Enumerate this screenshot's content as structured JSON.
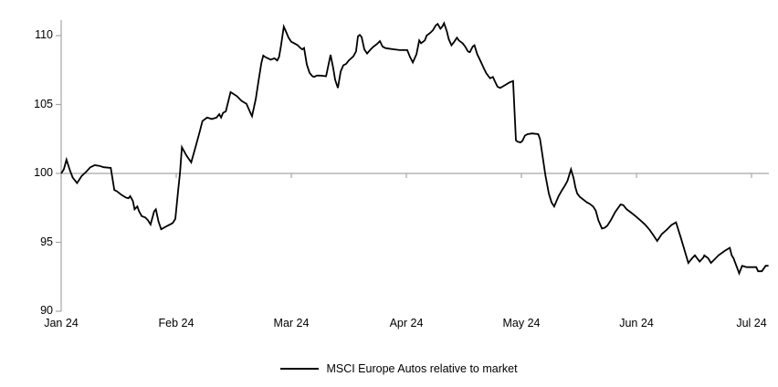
{
  "chart_data": {
    "type": "line",
    "title": "",
    "legend": {
      "position": "bottom-center",
      "entries": [
        "MSCI Europe Autos relative to market"
      ]
    },
    "x_axis": {
      "tick_labels": [
        "Jan 24",
        "Feb 24",
        "Mar 24",
        "Apr 24",
        "May 24",
        "Jun 24",
        "Jul 24"
      ],
      "tick_positions_months": [
        0,
        1,
        2,
        3,
        4,
        5,
        6
      ],
      "range_months": [
        0,
        6.15
      ]
    },
    "y_axis": {
      "tick_labels": [
        "90",
        "95",
        "100",
        "105",
        "110"
      ],
      "tick_values": [
        90,
        95,
        100,
        105,
        110
      ],
      "range": [
        90,
        111
      ],
      "baseline": 100
    },
    "grid": "single horizontal gridline at y=100 with month tick marks below it",
    "colors": {
      "line": "#000000",
      "axis": "#a6a6a6",
      "text": "#000000"
    },
    "series": [
      {
        "name": "MSCI Europe Autos relative to market",
        "color": "#000000",
        "points": [
          [
            0,
            100.0
          ],
          [
            0.023,
            100.3
          ],
          [
            0.046,
            101.0
          ],
          [
            0.077,
            100.2
          ],
          [
            0.1,
            99.7
          ],
          [
            0.138,
            99.3
          ],
          [
            0.177,
            99.8
          ],
          [
            0.215,
            100.1
          ],
          [
            0.254,
            100.45
          ],
          [
            0.292,
            100.6
          ],
          [
            0.331,
            100.55
          ],
          [
            0.369,
            100.45
          ],
          [
            0.431,
            100.4
          ],
          [
            0.462,
            98.8
          ],
          [
            0.485,
            98.7
          ],
          [
            0.523,
            98.45
          ],
          [
            0.562,
            98.25
          ],
          [
            0.585,
            98.2
          ],
          [
            0.6,
            98.35
          ],
          [
            0.623,
            98.0
          ],
          [
            0.638,
            97.4
          ],
          [
            0.662,
            97.6
          ],
          [
            0.677,
            97.25
          ],
          [
            0.7,
            96.9
          ],
          [
            0.731,
            96.8
          ],
          [
            0.754,
            96.6
          ],
          [
            0.777,
            96.3
          ],
          [
            0.808,
            97.25
          ],
          [
            0.823,
            97.4
          ],
          [
            0.846,
            96.5
          ],
          [
            0.869,
            95.95
          ],
          [
            0.892,
            96.05
          ],
          [
            0.923,
            96.2
          ],
          [
            0.946,
            96.3
          ],
          [
            0.969,
            96.4
          ],
          [
            0.992,
            96.7
          ],
          [
            1.016,
            98.7
          ],
          [
            1.033,
            100.1
          ],
          [
            1.049,
            101.9
          ],
          [
            1.089,
            101.3
          ],
          [
            1.13,
            100.8
          ],
          [
            1.171,
            102.0
          ],
          [
            1.203,
            103.0
          ],
          [
            1.228,
            103.8
          ],
          [
            1.268,
            104.05
          ],
          [
            1.309,
            103.95
          ],
          [
            1.35,
            104.05
          ],
          [
            1.374,
            104.3
          ],
          [
            1.39,
            104.05
          ],
          [
            1.407,
            104.4
          ],
          [
            1.431,
            104.5
          ],
          [
            1.472,
            105.9
          ],
          [
            1.528,
            105.6
          ],
          [
            1.569,
            105.25
          ],
          [
            1.61,
            105.05
          ],
          [
            1.65,
            104.3
          ],
          [
            1.659,
            104.15
          ],
          [
            1.691,
            105.4
          ],
          [
            1.715,
            106.7
          ],
          [
            1.74,
            108.0
          ],
          [
            1.756,
            108.55
          ],
          [
            1.772,
            108.45
          ],
          [
            1.797,
            108.35
          ],
          [
            1.821,
            108.25
          ],
          [
            1.854,
            108.35
          ],
          [
            1.878,
            108.2
          ],
          [
            1.894,
            108.45
          ],
          [
            1.911,
            109.3
          ],
          [
            1.935,
            110.65
          ],
          [
            1.959,
            110.2
          ],
          [
            1.976,
            109.85
          ],
          [
            2.0,
            109.55
          ],
          [
            2.024,
            109.45
          ],
          [
            2.056,
            109.3
          ],
          [
            2.079,
            109.1
          ],
          [
            2.095,
            109.0
          ],
          [
            2.111,
            109.1
          ],
          [
            2.135,
            107.9
          ],
          [
            2.159,
            107.3
          ],
          [
            2.183,
            107.05
          ],
          [
            2.198,
            107.0
          ],
          [
            2.222,
            107.1
          ],
          [
            2.254,
            107.1
          ],
          [
            2.302,
            107.05
          ],
          [
            2.341,
            108.6
          ],
          [
            2.365,
            107.6
          ],
          [
            2.381,
            106.8
          ],
          [
            2.405,
            106.2
          ],
          [
            2.429,
            107.4
          ],
          [
            2.452,
            107.85
          ],
          [
            2.476,
            107.95
          ],
          [
            2.5,
            108.2
          ],
          [
            2.54,
            108.5
          ],
          [
            2.563,
            108.85
          ],
          [
            2.579,
            109.95
          ],
          [
            2.595,
            110.05
          ],
          [
            2.611,
            109.9
          ],
          [
            2.635,
            109.0
          ],
          [
            2.659,
            108.7
          ],
          [
            2.69,
            109.0
          ],
          [
            2.714,
            109.2
          ],
          [
            2.746,
            109.4
          ],
          [
            2.77,
            109.6
          ],
          [
            2.794,
            109.2
          ],
          [
            2.817,
            109.1
          ],
          [
            2.849,
            109.05
          ],
          [
            2.897,
            109.0
          ],
          [
            2.944,
            108.95
          ],
          [
            3.008,
            108.95
          ],
          [
            3.032,
            108.45
          ],
          [
            3.056,
            108.05
          ],
          [
            3.088,
            108.65
          ],
          [
            3.112,
            109.65
          ],
          [
            3.128,
            109.45
          ],
          [
            3.16,
            109.65
          ],
          [
            3.176,
            110.0
          ],
          [
            3.208,
            110.2
          ],
          [
            3.232,
            110.4
          ],
          [
            3.256,
            110.75
          ],
          [
            3.272,
            110.85
          ],
          [
            3.296,
            110.5
          ],
          [
            3.312,
            110.65
          ],
          [
            3.328,
            110.9
          ],
          [
            3.352,
            110.3
          ],
          [
            3.368,
            109.75
          ],
          [
            3.392,
            109.3
          ],
          [
            3.416,
            109.55
          ],
          [
            3.44,
            109.85
          ],
          [
            3.456,
            109.65
          ],
          [
            3.488,
            109.45
          ],
          [
            3.512,
            109.2
          ],
          [
            3.536,
            108.85
          ],
          [
            3.552,
            108.8
          ],
          [
            3.576,
            109.2
          ],
          [
            3.592,
            109.3
          ],
          [
            3.616,
            108.65
          ],
          [
            3.648,
            108.1
          ],
          [
            3.672,
            107.65
          ],
          [
            3.696,
            107.25
          ],
          [
            3.728,
            106.9
          ],
          [
            3.752,
            107.0
          ],
          [
            3.768,
            106.7
          ],
          [
            3.792,
            106.3
          ],
          [
            3.816,
            106.2
          ],
          [
            3.856,
            106.4
          ],
          [
            3.896,
            106.6
          ],
          [
            3.928,
            106.7
          ],
          [
            3.952,
            102.4
          ],
          [
            3.968,
            102.3
          ],
          [
            3.992,
            102.25
          ],
          [
            4.008,
            102.35
          ],
          [
            4.031,
            102.75
          ],
          [
            4.054,
            102.85
          ],
          [
            4.092,
            102.9
          ],
          [
            4.146,
            102.85
          ],
          [
            4.162,
            102.5
          ],
          [
            4.185,
            101.2
          ],
          [
            4.208,
            99.9
          ],
          [
            4.238,
            98.55
          ],
          [
            4.262,
            97.9
          ],
          [
            4.285,
            97.6
          ],
          [
            4.323,
            98.35
          ],
          [
            4.354,
            98.8
          ],
          [
            4.377,
            99.1
          ],
          [
            4.4,
            99.45
          ],
          [
            4.431,
            100.3
          ],
          [
            4.454,
            99.65
          ],
          [
            4.469,
            99.0
          ],
          [
            4.485,
            98.55
          ],
          [
            4.508,
            98.3
          ],
          [
            4.538,
            98.1
          ],
          [
            4.569,
            97.9
          ],
          [
            4.592,
            97.8
          ],
          [
            4.623,
            97.6
          ],
          [
            4.646,
            97.3
          ],
          [
            4.669,
            96.6
          ],
          [
            4.7,
            96.0
          ],
          [
            4.723,
            96.05
          ],
          [
            4.746,
            96.2
          ],
          [
            4.777,
            96.6
          ],
          [
            4.815,
            97.2
          ],
          [
            4.862,
            97.75
          ],
          [
            4.885,
            97.7
          ],
          [
            4.915,
            97.4
          ],
          [
            4.954,
            97.15
          ],
          [
            4.992,
            96.9
          ],
          [
            5.033,
            96.6
          ],
          [
            5.074,
            96.3
          ],
          [
            5.115,
            95.9
          ],
          [
            5.148,
            95.5
          ],
          [
            5.18,
            95.1
          ],
          [
            5.221,
            95.6
          ],
          [
            5.262,
            95.9
          ],
          [
            5.303,
            96.25
          ],
          [
            5.344,
            96.45
          ],
          [
            5.385,
            95.35
          ],
          [
            5.426,
            94.2
          ],
          [
            5.451,
            93.5
          ],
          [
            5.484,
            93.85
          ],
          [
            5.508,
            94.05
          ],
          [
            5.549,
            93.6
          ],
          [
            5.582,
            93.9
          ],
          [
            5.59,
            94.05
          ],
          [
            5.623,
            93.85
          ],
          [
            5.648,
            93.5
          ],
          [
            5.689,
            93.85
          ],
          [
            5.713,
            94.05
          ],
          [
            5.77,
            94.4
          ],
          [
            5.811,
            94.6
          ],
          [
            5.828,
            94.05
          ],
          [
            5.844,
            93.85
          ],
          [
            5.893,
            92.75
          ],
          [
            5.918,
            93.3
          ],
          [
            5.959,
            93.2
          ],
          [
            6.0,
            93.2
          ],
          [
            6.041,
            93.2
          ],
          [
            6.057,
            92.9
          ],
          [
            6.09,
            92.9
          ],
          [
            6.123,
            93.3
          ],
          [
            6.148,
            93.3
          ]
        ]
      }
    ]
  }
}
